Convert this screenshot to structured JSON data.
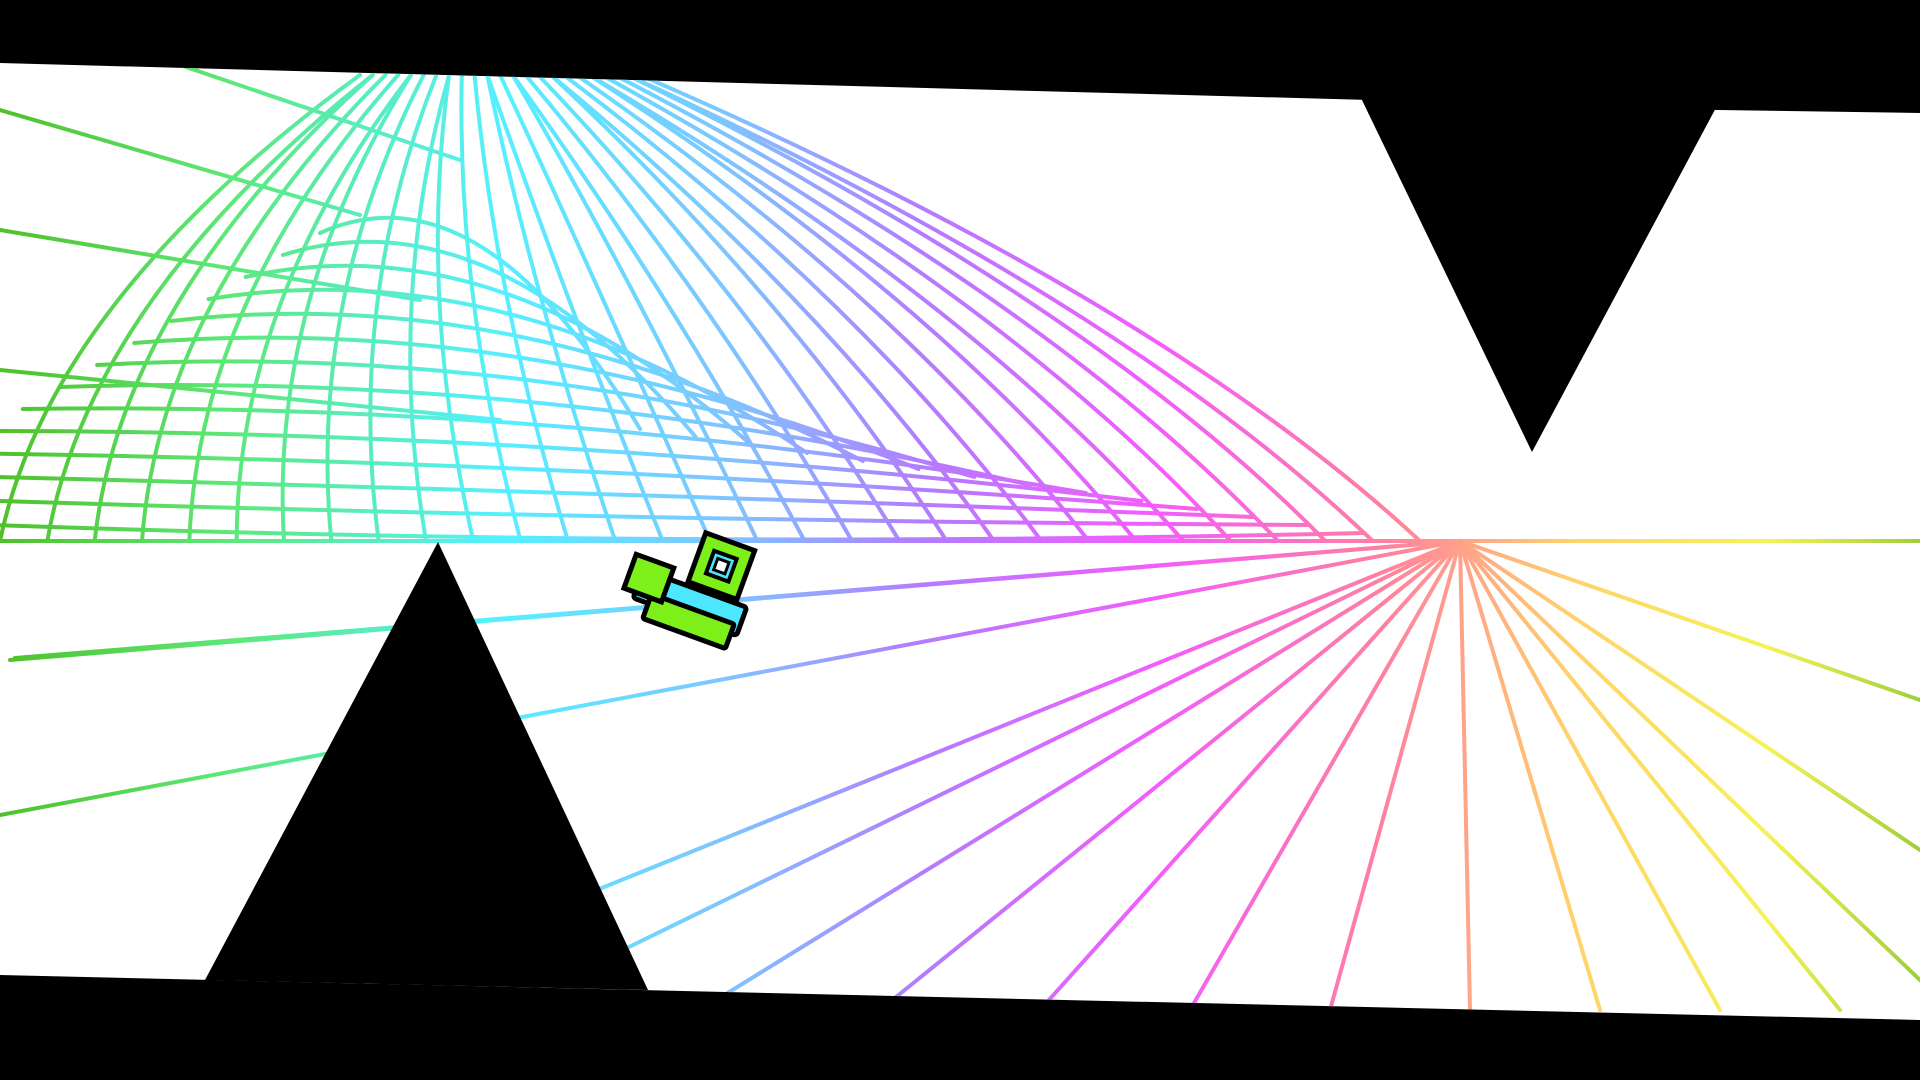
{
  "game": {
    "mode": "ship",
    "colors": {
      "background": "#000000",
      "corridor": "#ffffff",
      "player_primary": "#7df01a",
      "player_secondary": "#4de8ff",
      "player_outline": "#000000",
      "grid_gradient": [
        "#4fc12a",
        "#5de879",
        "#55f0ff",
        "#9b8cff",
        "#f35cff",
        "#ff7fa0",
        "#ffd36a",
        "#f6f25a",
        "#9fcf3a"
      ]
    },
    "elements": {
      "corridor": "white-corridor",
      "ceiling_spike": "ceiling-spike",
      "floor_spike": "floor-spike",
      "player": "player-ship",
      "grid": "neon-grid-background"
    }
  }
}
